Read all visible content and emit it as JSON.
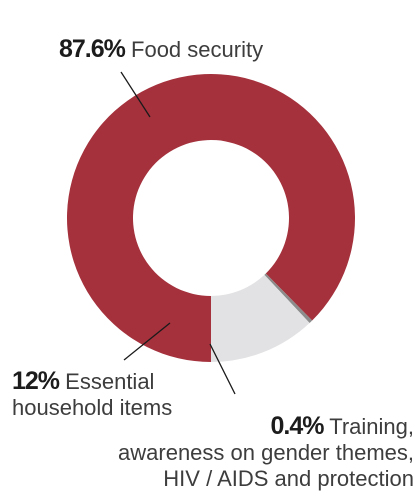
{
  "chart_data": {
    "type": "pie",
    "donut": true,
    "categories": [
      "Food security",
      "Training, awareness on gender themes, HIV / AIDS and protection",
      "Essential household items"
    ],
    "values": [
      87.6,
      0.4,
      12
    ],
    "colors": [
      "#a4313c",
      "#8c8c8c",
      "#e2e2e4"
    ],
    "labels": {
      "food": {
        "value_text": "87.6%",
        "name_text": "Food security"
      },
      "household": {
        "value_text": "12%",
        "name_lines": [
          "Essential",
          "household items"
        ]
      },
      "training": {
        "value_text": "0.4%",
        "name_lines": [
          "Training,",
          "awareness on gender themes,",
          "HIV / AIDS and protection"
        ]
      }
    }
  }
}
